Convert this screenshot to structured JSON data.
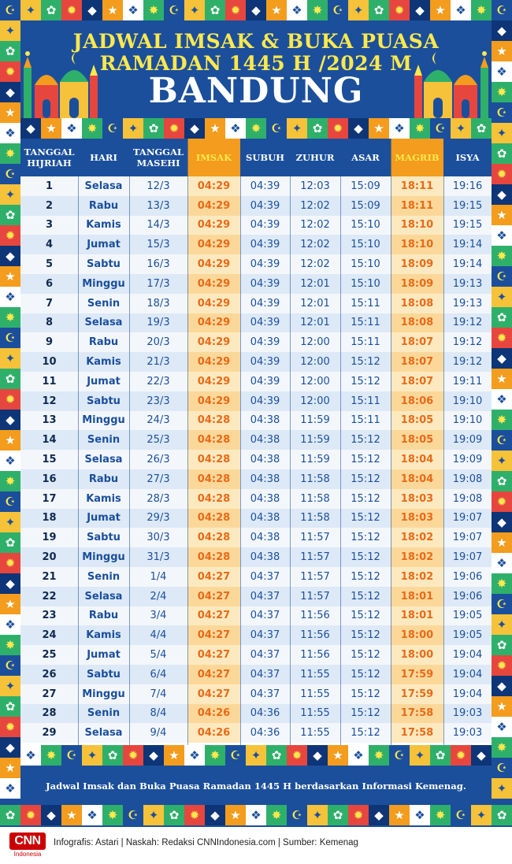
{
  "header": {
    "title_line1": "JADWAL IMSAK & BUKA PUASA",
    "title_line2": "RAMADAN 1445 H /2024 M",
    "city": "BANDUNG"
  },
  "table": {
    "columns": [
      "TANGGAL HIJRIAH",
      "HARI",
      "TANGGAL MASEHI",
      "IMSAK",
      "SUBUH",
      "ZUHUR",
      "ASAR",
      "MAGRIB",
      "ISYA"
    ],
    "highlight_columns": [
      "IMSAK",
      "MAGRIB"
    ],
    "rows": [
      [
        "1",
        "Selasa",
        "12/3",
        "04:29",
        "04:39",
        "12:03",
        "15:09",
        "18:11",
        "19:16"
      ],
      [
        "2",
        "Rabu",
        "13/3",
        "04:29",
        "04:39",
        "12:02",
        "15:09",
        "18:11",
        "19:15"
      ],
      [
        "3",
        "Kamis",
        "14/3",
        "04:29",
        "04:39",
        "12:02",
        "15:10",
        "18:10",
        "19:15"
      ],
      [
        "4",
        "Jumat",
        "15/3",
        "04:29",
        "04:39",
        "12:02",
        "15:10",
        "18:10",
        "19:14"
      ],
      [
        "5",
        "Sabtu",
        "16/3",
        "04:29",
        "04:39",
        "12:02",
        "15:10",
        "18:09",
        "19:14"
      ],
      [
        "6",
        "Minggu",
        "17/3",
        "04:29",
        "04:39",
        "12:01",
        "15:10",
        "18:09",
        "19:13"
      ],
      [
        "7",
        "Senin",
        "18/3",
        "04:29",
        "04:39",
        "12:01",
        "15:11",
        "18:08",
        "19:13"
      ],
      [
        "8",
        "Selasa",
        "19/3",
        "04:29",
        "04:39",
        "12:01",
        "15:11",
        "18:08",
        "19:12"
      ],
      [
        "9",
        "Rabu",
        "20/3",
        "04:29",
        "04:39",
        "12:00",
        "15:11",
        "18:07",
        "19:12"
      ],
      [
        "10",
        "Kamis",
        "21/3",
        "04:29",
        "04:39",
        "12:00",
        "15:12",
        "18:07",
        "19:12"
      ],
      [
        "11",
        "Jumat",
        "22/3",
        "04:29",
        "04:39",
        "12:00",
        "15:12",
        "18:07",
        "19:11"
      ],
      [
        "12",
        "Sabtu",
        "23/3",
        "04:29",
        "04:39",
        "12:00",
        "15:11",
        "18:06",
        "19:10"
      ],
      [
        "13",
        "Minggu",
        "24/3",
        "04:28",
        "04:38",
        "11:59",
        "15:11",
        "18:05",
        "19:10"
      ],
      [
        "14",
        "Senin",
        "25/3",
        "04:28",
        "04:38",
        "11:59",
        "15:12",
        "18:05",
        "19:09"
      ],
      [
        "15",
        "Selasa",
        "26/3",
        "04:28",
        "04:38",
        "11:59",
        "15:12",
        "18:04",
        "19:09"
      ],
      [
        "16",
        "Rabu",
        "27/3",
        "04:28",
        "04:38",
        "11:58",
        "15:12",
        "18:04",
        "19:08"
      ],
      [
        "17",
        "Kamis",
        "28/3",
        "04:28",
        "04:38",
        "11:58",
        "15:12",
        "18:03",
        "19:08"
      ],
      [
        "18",
        "Jumat",
        "29/3",
        "04:28",
        "04:38",
        "11:58",
        "15:12",
        "18:03",
        "19:07"
      ],
      [
        "19",
        "Sabtu",
        "30/3",
        "04:28",
        "04:38",
        "11:57",
        "15:12",
        "18:02",
        "19:07"
      ],
      [
        "20",
        "Minggu",
        "31/3",
        "04:28",
        "04:38",
        "11:57",
        "15:12",
        "18:02",
        "19:07"
      ],
      [
        "21",
        "Senin",
        "1/4",
        "04:27",
        "04:37",
        "11:57",
        "15:12",
        "18:02",
        "19:06"
      ],
      [
        "22",
        "Selasa",
        "2/4",
        "04:27",
        "04:37",
        "11:57",
        "15:12",
        "18:01",
        "19:06"
      ],
      [
        "23",
        "Rabu",
        "3/4",
        "04:27",
        "04:37",
        "11:56",
        "15:12",
        "18:01",
        "19:05"
      ],
      [
        "24",
        "Kamis",
        "4/4",
        "04:27",
        "04:37",
        "11:56",
        "15:12",
        "18:00",
        "19:05"
      ],
      [
        "25",
        "Jumat",
        "5/4",
        "04:27",
        "04:37",
        "11:56",
        "15:12",
        "18:00",
        "19:04"
      ],
      [
        "26",
        "Sabtu",
        "6/4",
        "04:27",
        "04:37",
        "11:55",
        "15:12",
        "17:59",
        "19:04"
      ],
      [
        "27",
        "Minggu",
        "7/4",
        "04:27",
        "04:37",
        "11:55",
        "15:12",
        "17:59",
        "19:04"
      ],
      [
        "28",
        "Senin",
        "8/4",
        "04:26",
        "04:36",
        "11:55",
        "15:12",
        "17:58",
        "19:03"
      ],
      [
        "29",
        "Selasa",
        "9/4",
        "04:26",
        "04:36",
        "11:55",
        "15:12",
        "17:58",
        "19:03"
      ]
    ]
  },
  "note": "Jadwal Imsak dan Buka Puasa Ramadan 1445 H berdasarkan Informasi Kemenag.",
  "footer": {
    "logo_text": "CNN",
    "logo_sub": "Indonesia",
    "credits": "Infografis: Astari | Naskah: Redaksi CNNIndonesia.com | Sumber: Kemenag"
  },
  "colors": {
    "primary_blue": "#1b4f9c",
    "title_yellow": "#ffe84d",
    "highlight_orange": "#f39c1d",
    "time_orange": "#ea6a17",
    "row_light": "#f3f7fc",
    "row_dark": "#dde9f7",
    "brand_red": "#cc0000"
  },
  "decor_icons": [
    "crescent-star-icon",
    "star-icon",
    "palm-tree-icon",
    "mosque-dome-icon",
    "lantern-icon",
    "geometric-tile-icon"
  ]
}
